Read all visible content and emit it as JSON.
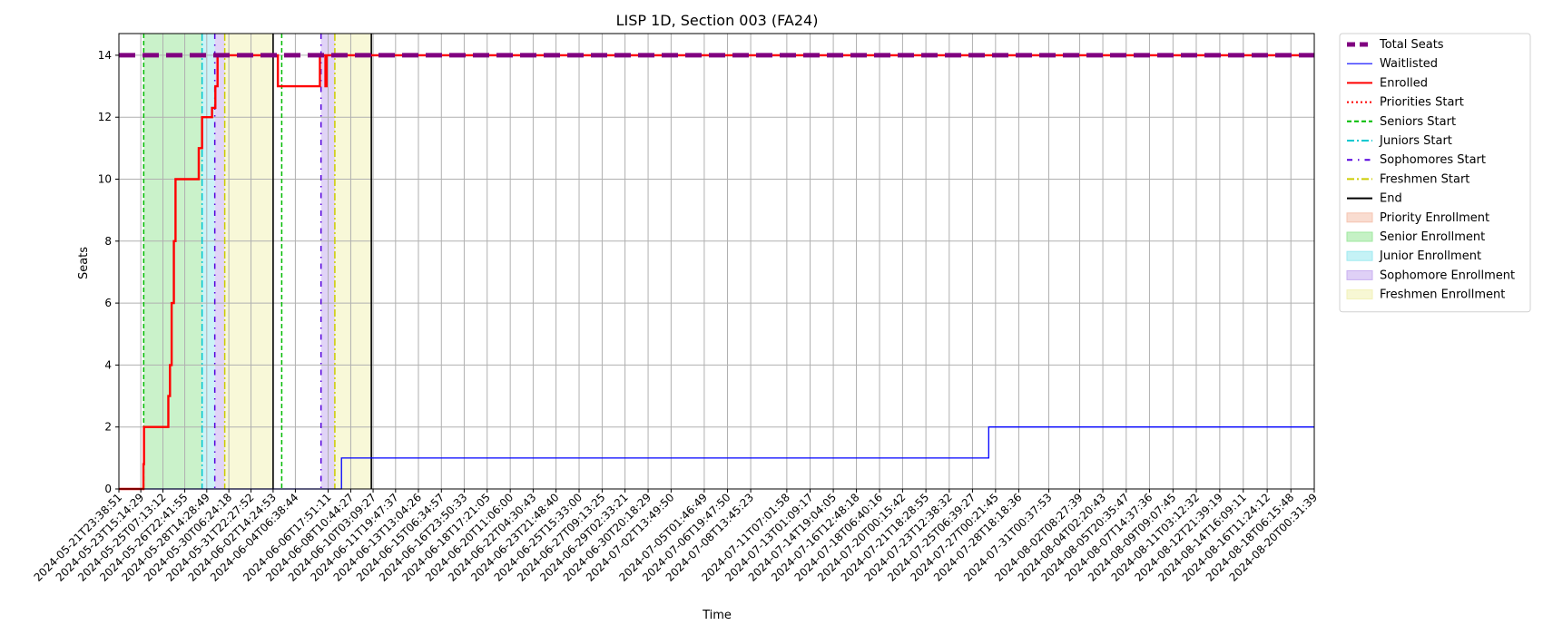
{
  "chart_data": {
    "type": "line",
    "title": "LISP 1D, Section 003 (FA24)",
    "xlabel": "Time",
    "ylabel": "Seats",
    "ylim": [
      0,
      14.7
    ],
    "yticks": [
      0,
      2,
      4,
      6,
      8,
      10,
      12,
      14
    ],
    "grid": true,
    "legend_position": "outside-right",
    "x_tick_labels": [
      "2024-05-21T23:38:51",
      "2024-05-23T15:14:29",
      "2024-05-25T07:13:12",
      "2024-05-26T22:41:55",
      "2024-05-28T14:28:49",
      "2024-05-30T06:24:18",
      "2024-05-31T22:27:52",
      "2024-06-02T14:24:53",
      "2024-06-04T06:38:44",
      "2024-06-06T17:51:11",
      "2024-06-08T10:44:27",
      "2024-06-10T03:09:27",
      "2024-06-11T19:47:37",
      "2024-06-13T13:04:26",
      "2024-06-15T06:34:57",
      "2024-06-16T23:50:33",
      "2024-06-18T17:21:05",
      "2024-06-20T11:06:00",
      "2024-06-22T04:30:43",
      "2024-06-23T21:48:40",
      "2024-06-25T15:33:00",
      "2024-06-27T09:13:25",
      "2024-06-29T02:33:21",
      "2024-06-30T20:18:29",
      "2024-07-02T13:49:50",
      "2024-07-05T01:46:49",
      "2024-07-06T19:47:50",
      "2024-07-08T13:45:23",
      "2024-07-11T07:01:58",
      "2024-07-13T01:09:17",
      "2024-07-14T19:04:05",
      "2024-07-16T12:48:18",
      "2024-07-18T06:40:16",
      "2024-07-20T00:15:42",
      "2024-07-21T18:28:55",
      "2024-07-23T12:38:32",
      "2024-07-25T06:39:27",
      "2024-07-27T00:21:45",
      "2024-07-28T18:18:36",
      "2024-07-31T00:37:53",
      "2024-08-02T08:27:39",
      "2024-08-04T02:20:43",
      "2024-08-05T20:35:47",
      "2024-08-07T14:37:36",
      "2024-08-09T09:07:45",
      "2024-08-11T03:12:32",
      "2024-08-12T21:39:19",
      "2024-08-14T16:09:11",
      "2024-08-16T11:24:12",
      "2024-08-18T06:15:48",
      "2024-08-20T00:31:39"
    ],
    "series": [
      {
        "name": "Total Seats",
        "color": "#800080",
        "style": "dashed-thick",
        "points": [
          [
            "2024-05-21T23:38:51",
            14
          ],
          [
            "2024-08-20T00:31:39",
            14
          ]
        ]
      },
      {
        "name": "Waitlisted",
        "color": "#0000ff",
        "style": "step",
        "points": [
          [
            "2024-05-21T23:38:51",
            0
          ],
          [
            "2024-06-07T18:00:00",
            1
          ],
          [
            "2024-07-26T12:00:00",
            2
          ],
          [
            "2024-08-20T00:31:39",
            2
          ]
        ]
      },
      {
        "name": "Enrolled",
        "color": "#ff0000",
        "style": "step",
        "points": [
          [
            "2024-05-21T23:38:51",
            0
          ],
          [
            "2024-05-23T20:00:00",
            0.8
          ],
          [
            "2024-05-23T21:00:00",
            2
          ],
          [
            "2024-05-25T17:00:00",
            3
          ],
          [
            "2024-05-25T20:00:00",
            4
          ],
          [
            "2024-05-25T23:00:00",
            6
          ],
          [
            "2024-05-26T03:00:00",
            8
          ],
          [
            "2024-05-26T06:00:00",
            10
          ],
          [
            "2024-05-28T00:00:00",
            11
          ],
          [
            "2024-05-28T06:00:00",
            12
          ],
          [
            "2024-05-29T00:00:00",
            12.3
          ],
          [
            "2024-05-29T06:00:00",
            13
          ],
          [
            "2024-05-29T10:00:00",
            14
          ],
          [
            "2024-06-02T23:00:00",
            13
          ],
          [
            "2024-06-06T03:00:00",
            14
          ],
          [
            "2024-06-06T13:00:00",
            13
          ],
          [
            "2024-06-06T15:00:00",
            14
          ],
          [
            "2024-08-20T00:31:39",
            14
          ]
        ]
      }
    ],
    "vertical_markers": [
      {
        "name": "Priorities Start",
        "color": "#ff0000",
        "style": "dotted",
        "x": []
      },
      {
        "name": "Seniors Start",
        "color": "#00bb00",
        "style": "dashed",
        "x": [
          "2024-05-23T20:30:00",
          "2024-06-03T06:00:00"
        ]
      },
      {
        "name": "Juniors Start",
        "color": "#00c8d0",
        "style": "dashdot",
        "x": [
          "2024-05-28T06:00:00"
        ]
      },
      {
        "name": "Sophomores Start",
        "color": "#5500dd",
        "style": "dashdot-sparse",
        "x": [
          "2024-05-29T05:00:00",
          "2024-06-06T05:00:00"
        ]
      },
      {
        "name": "Freshmen Start",
        "color": "#cccc00",
        "style": "dashdot",
        "x": [
          "2024-05-29T23:00:00",
          "2024-06-07T06:00:00"
        ]
      },
      {
        "name": "End",
        "color": "#000000",
        "style": "solid",
        "x": [
          "2024-06-02T14:24:53",
          "2024-06-10T00:00:00"
        ]
      }
    ],
    "shaded_regions": [
      {
        "name": "Priority Enrollment",
        "color": "#f5c4b0",
        "ranges": []
      },
      {
        "name": "Senior Enrollment",
        "color": "#9ee89e",
        "ranges": [
          [
            "2024-05-23T20:30:00",
            "2024-05-28T06:00:00"
          ]
        ]
      },
      {
        "name": "Junior Enrollment",
        "color": "#9eeaf0",
        "ranges": [
          [
            "2024-05-28T06:00:00",
            "2024-05-29T05:00:00"
          ]
        ]
      },
      {
        "name": "Sophomore Enrollment",
        "color": "#c9b0f0",
        "ranges": [
          [
            "2024-05-29T05:00:00",
            "2024-05-29T23:00:00"
          ],
          [
            "2024-06-06T05:00:00",
            "2024-06-07T06:00:00"
          ]
        ]
      },
      {
        "name": "Freshmen Enrollment",
        "color": "#f2f2b8",
        "ranges": [
          [
            "2024-05-29T23:00:00",
            "2024-06-02T14:24:53"
          ],
          [
            "2024-06-07T06:00:00",
            "2024-06-10T00:00:00"
          ]
        ]
      }
    ],
    "legend": [
      {
        "label": "Total Seats",
        "kind": "line",
        "color": "#800080",
        "style": "dashed-thick"
      },
      {
        "label": "Waitlisted",
        "kind": "line",
        "color": "#0000ff",
        "style": "solid-thin"
      },
      {
        "label": "Enrolled",
        "kind": "line",
        "color": "#ff0000",
        "style": "solid"
      },
      {
        "label": "Priorities Start",
        "kind": "line",
        "color": "#ff0000",
        "style": "dotted"
      },
      {
        "label": "Seniors Start",
        "kind": "line",
        "color": "#00bb00",
        "style": "dashed"
      },
      {
        "label": "Juniors Start",
        "kind": "line",
        "color": "#00c8d0",
        "style": "dashdot"
      },
      {
        "label": "Sophomores Start",
        "kind": "line",
        "color": "#5500dd",
        "style": "dashdot-sparse"
      },
      {
        "label": "Freshmen Start",
        "kind": "line",
        "color": "#cccc00",
        "style": "dashdot"
      },
      {
        "label": "End",
        "kind": "line",
        "color": "#000000",
        "style": "solid"
      },
      {
        "label": "Priority Enrollment",
        "kind": "patch",
        "color": "#f5c4b0"
      },
      {
        "label": "Senior Enrollment",
        "kind": "patch",
        "color": "#9ee89e"
      },
      {
        "label": "Junior Enrollment",
        "kind": "patch",
        "color": "#9eeaf0"
      },
      {
        "label": "Sophomore Enrollment",
        "kind": "patch",
        "color": "#c9b0f0"
      },
      {
        "label": "Freshmen Enrollment",
        "kind": "patch",
        "color": "#f2f2b8"
      }
    ]
  }
}
